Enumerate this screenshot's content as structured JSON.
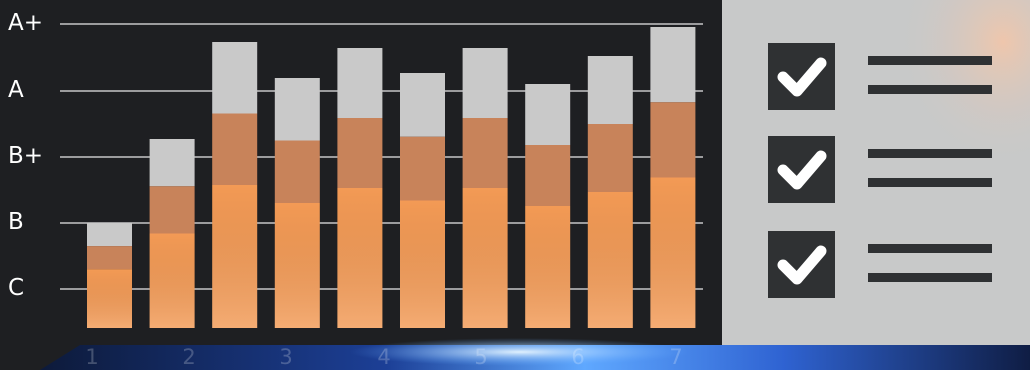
{
  "chart_data": {
    "type": "bar",
    "stacked": true,
    "title": "",
    "xlabel": "",
    "ylabel": "",
    "x_categories": [
      "1",
      "2",
      "3",
      "4",
      "5",
      "6",
      "7"
    ],
    "y_tick_labels": [
      "C",
      "B",
      "B+",
      "A",
      "A+"
    ],
    "grid": true,
    "bar_count": 10,
    "bar_segments_relative_height": [
      {
        "bar": 1,
        "orange": 0.56,
        "brown": 0.22,
        "gray": 0.22
      },
      {
        "bar": 2,
        "orange": 0.5,
        "brown": 0.25,
        "gray": 0.25
      },
      {
        "bar": 3,
        "orange": 0.5,
        "brown": 0.25,
        "gray": 0.25
      },
      {
        "bar": 4,
        "orange": 0.5,
        "brown": 0.25,
        "gray": 0.25
      },
      {
        "bar": 5,
        "orange": 0.5,
        "brown": 0.25,
        "gray": 0.25
      },
      {
        "bar": 6,
        "orange": 0.5,
        "brown": 0.25,
        "gray": 0.25
      },
      {
        "bar": 7,
        "orange": 0.5,
        "brown": 0.25,
        "gray": 0.25
      },
      {
        "bar": 8,
        "orange": 0.5,
        "brown": 0.25,
        "gray": 0.25
      },
      {
        "bar": 9,
        "orange": 0.5,
        "brown": 0.25,
        "gray": 0.25
      },
      {
        "bar": 10,
        "orange": 0.5,
        "brown": 0.25,
        "gray": 0.25
      }
    ],
    "bar_total_heights_in_grades": [
      {
        "bar": 1,
        "grade_level": "between C and B"
      },
      {
        "bar": 2,
        "grade_level": "between B+ and A"
      },
      {
        "bar": 3,
        "grade_level": "between A and A+"
      },
      {
        "bar": 4,
        "grade_level": "just below A"
      },
      {
        "bar": 5,
        "grade_level": "between A and A+"
      },
      {
        "bar": 6,
        "grade_level": "just above A"
      },
      {
        "bar": 7,
        "grade_level": "between A and A+"
      },
      {
        "bar": 8,
        "grade_level": "just below A"
      },
      {
        "bar": 9,
        "grade_level": "between A and A+"
      },
      {
        "bar": 10,
        "grade_level": "just below A+"
      }
    ],
    "series_colors": {
      "lower": "#f39a55",
      "middle": "#c8835a",
      "upper": "#c9c9c9"
    }
  },
  "checklist": {
    "items": [
      {
        "checked": true
      },
      {
        "checked": true
      },
      {
        "checked": true
      }
    ],
    "icon": "checkbox-checked-icon"
  },
  "colors": {
    "background": "#1e1f22",
    "panel": "#c8c9c9",
    "checkbox": "#2f3133",
    "glow": "#3a7fe0"
  }
}
